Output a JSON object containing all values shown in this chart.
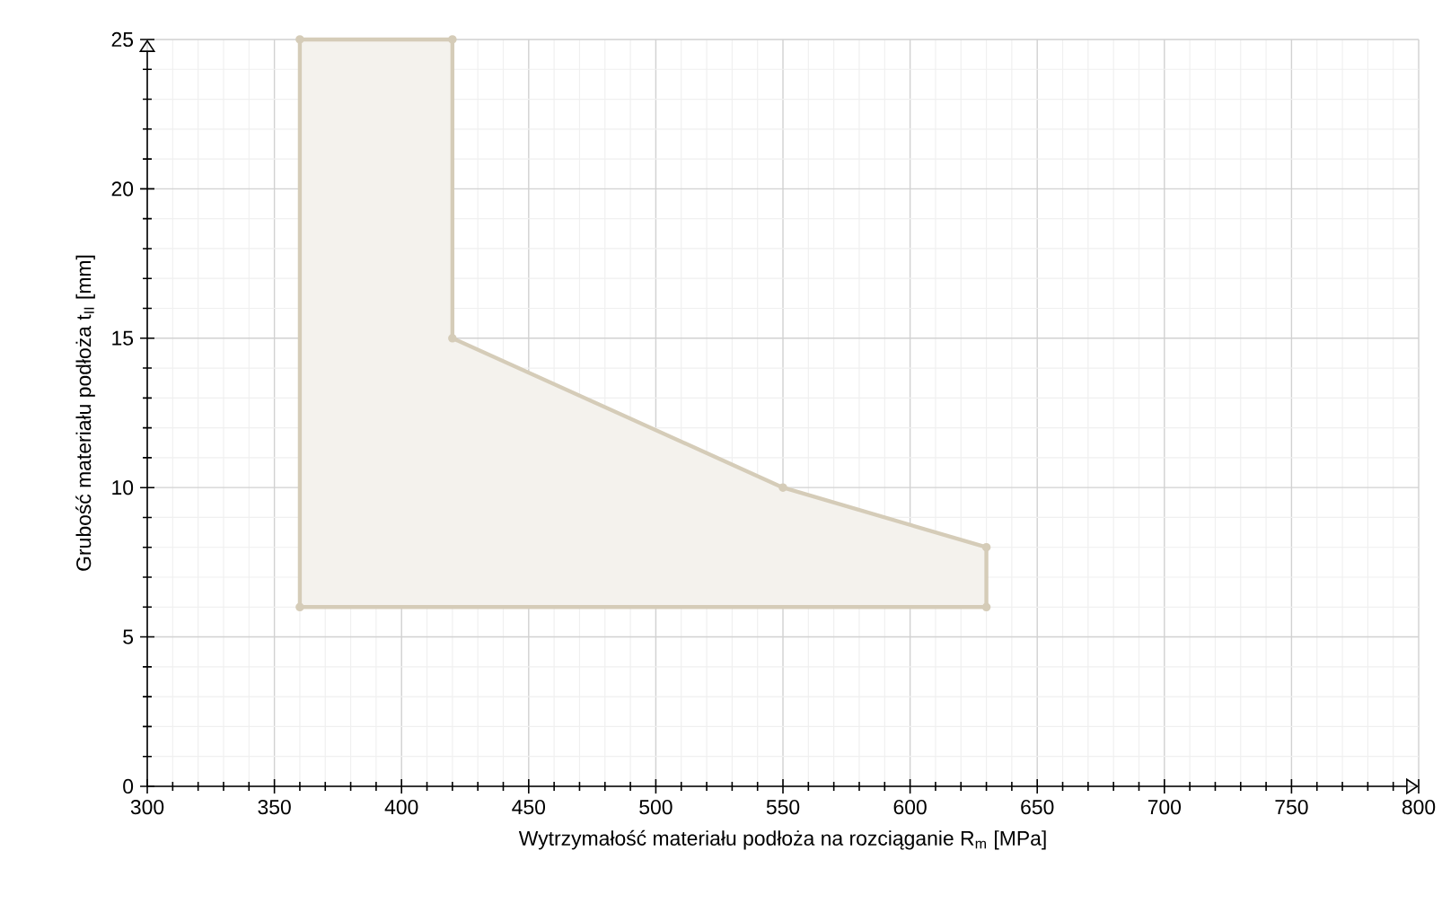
{
  "chart_data": {
    "type": "area",
    "xlabel": "Wytrzymałość materiału podłoża na rozciąganie R$_{m}$ [MPa]",
    "ylabel": "Grubość materiału podłoża t$_{II}$ [mm]",
    "x": [
      360,
      360,
      630,
      630,
      550,
      420,
      420
    ],
    "series": [
      {
        "color": "#d5ccb8",
        "values": [
          25,
          6,
          6,
          8,
          10,
          15,
          25
        ]
      }
    ],
    "xlim": [
      300,
      800
    ],
    "ylim": [
      0,
      25
    ],
    "xticks": [
      300,
      350,
      400,
      450,
      500,
      550,
      600,
      650,
      700,
      750,
      800
    ],
    "yticks": [
      0,
      5,
      10,
      15,
      20,
      25
    ],
    "grid": true,
    "marker": "circle",
    "line_style": "solid"
  }
}
